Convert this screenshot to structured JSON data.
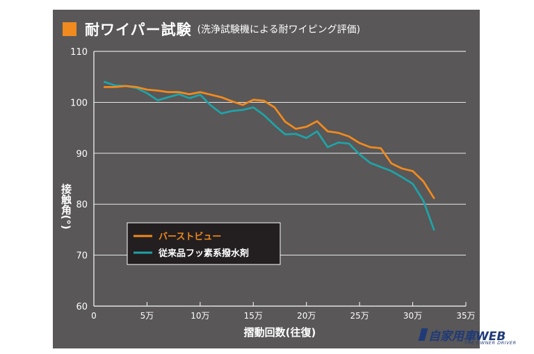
{
  "header": {
    "title": "耐ワイパー試験",
    "subtitle": "(洗浄試験機による耐ワイピング評価)"
  },
  "colors": {
    "panel_bg": "#595757",
    "accent": "#f18a1f",
    "series_orange": "#f18a1f",
    "series_teal": "#1fa3a8",
    "grid": "#ffffff",
    "text": "#ffffff"
  },
  "chart_data": {
    "type": "line",
    "title": "耐ワイパー試験",
    "xlabel": "摺動回数(往復)",
    "ylabel": "接触角(°)",
    "xlim": [
      0,
      35
    ],
    "ylim": [
      60,
      110
    ],
    "x_ticks": [
      {
        "value": 0,
        "label": "0"
      },
      {
        "value": 5,
        "label": "5万"
      },
      {
        "value": 10,
        "label": "10万"
      },
      {
        "value": 15,
        "label": "15万"
      },
      {
        "value": 20,
        "label": "20万"
      },
      {
        "value": 25,
        "label": "25万"
      },
      {
        "value": 30,
        "label": "30万"
      },
      {
        "value": 35,
        "label": "35万"
      }
    ],
    "y_ticks": [
      {
        "value": 60,
        "label": "60"
      },
      {
        "value": 70,
        "label": "70"
      },
      {
        "value": 80,
        "label": "80"
      },
      {
        "value": 90,
        "label": "90"
      },
      {
        "value": 100,
        "label": "100"
      },
      {
        "value": 110,
        "label": "110"
      }
    ],
    "legend_position": "bottom-left",
    "series": [
      {
        "name": "バーストビュー",
        "color": "#f18a1f",
        "x": [
          1,
          2,
          3,
          4,
          5,
          6,
          7,
          8,
          9,
          10,
          11,
          12,
          13,
          14,
          15,
          16,
          17,
          18,
          19,
          20,
          21,
          22,
          23,
          24,
          25,
          26,
          27,
          28,
          29,
          30,
          31,
          32
        ],
        "values": [
          103,
          103,
          103.2,
          103,
          102.5,
          102.3,
          102,
          102,
          101.6,
          102,
          101.5,
          101,
          100.2,
          99.5,
          100.5,
          100.3,
          99,
          96.2,
          94.8,
          95.2,
          96.3,
          94.3,
          94,
          93.3,
          92,
          91.2,
          91,
          88,
          87,
          86.5,
          84.5,
          81.2
        ]
      },
      {
        "name": "従来品フッ素系撥水剤",
        "color": "#1fa3a8",
        "x": [
          1,
          2,
          3,
          4,
          5,
          6,
          7,
          8,
          9,
          10,
          11,
          12,
          13,
          14,
          15,
          16,
          17,
          18,
          19,
          20,
          21,
          22,
          23,
          24,
          25,
          26,
          27,
          28,
          29,
          30,
          31,
          32
        ],
        "values": [
          104,
          103.3,
          103.2,
          102.8,
          101.8,
          100.4,
          101,
          101.6,
          100.8,
          101.5,
          99.4,
          97.8,
          98.3,
          98.5,
          99,
          97.5,
          95.5,
          93.7,
          93.8,
          93,
          94.3,
          91.2,
          92.1,
          91.9,
          89.8,
          88.1,
          87.3,
          86.5,
          85.3,
          84,
          80.7,
          75
        ]
      }
    ]
  },
  "watermark": {
    "main": "自家用車WEB",
    "sub": "THE OWNER DRIVER"
  }
}
